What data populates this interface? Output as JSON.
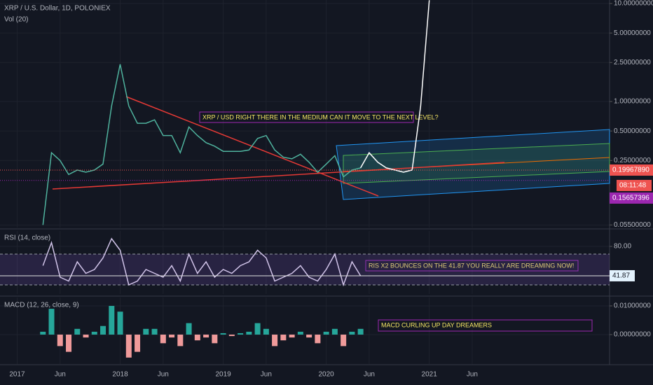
{
  "chart_data": [
    {
      "type": "line",
      "title": "XRP / U.S. Dollar, 1D, POLONIEX",
      "subtitle": "Vol (20)",
      "log_scale": true,
      "grid": true,
      "xlim": [
        "2016-11",
        "2022-10"
      ],
      "ylim": [
        0.0518,
        10.86
      ],
      "yticks": [
        {
          "value": 10,
          "label": "10.00000000"
        },
        {
          "value": 5,
          "label": "5.00000000"
        },
        {
          "value": 2.5,
          "label": "2.50000000"
        },
        {
          "value": 1,
          "label": "1.00000000"
        },
        {
          "value": 0.5,
          "label": "0.50000000"
        },
        {
          "value": 0.25,
          "label": "0.25000000"
        },
        {
          "value": 0.055,
          "label": "0.05500000"
        }
      ],
      "series": [
        {
          "color": "#4fb39e",
          "x": [
            "2017-04",
            "2017-05",
            "2017-06",
            "2017-07",
            "2017-08",
            "2017-09",
            "2017-10",
            "2017-11",
            "2017-12",
            "2018-01",
            "2018-02",
            "2018-03",
            "2018-04",
            "2018-05",
            "2018-06",
            "2018-07",
            "2018-08",
            "2018-09",
            "2018-10",
            "2018-11",
            "2018-12",
            "2019-01",
            "2019-02",
            "2019-03",
            "2019-04",
            "2019-05",
            "2019-06",
            "2019-07",
            "2019-08",
            "2019-09",
            "2019-10",
            "2019-11",
            "2019-12",
            "2020-01",
            "2020-02",
            "2020-03",
            "2020-04",
            "2020-05"
          ],
          "values": [
            0.055,
            0.3,
            0.25,
            0.18,
            0.2,
            0.19,
            0.2,
            0.23,
            0.9,
            2.4,
            0.9,
            0.6,
            0.6,
            0.65,
            0.45,
            0.45,
            0.3,
            0.55,
            0.45,
            0.38,
            0.35,
            0.31,
            0.31,
            0.31,
            0.32,
            0.42,
            0.45,
            0.32,
            0.27,
            0.26,
            0.29,
            0.24,
            0.19,
            0.23,
            0.28,
            0.17,
            0.2,
            0.21
          ]
        },
        {
          "color": "#ffffff",
          "x": [
            "2020-05",
            "2020-06",
            "2020-07",
            "2020-08",
            "2020-09",
            "2020-10",
            "2020-11",
            "2020-12",
            "2021-01"
          ],
          "values": [
            0.21,
            0.3,
            0.24,
            0.21,
            0.2,
            0.19,
            0.2,
            0.9,
            10.8
          ]
        }
      ],
      "price_labels": [
        {
          "value": 0.1996789,
          "label": "0.19967890",
          "color": "#ef5350"
        },
        {
          "value": 0.15657396,
          "label": "0.15657396",
          "color": "#9c27b0"
        }
      ],
      "countdown": "08:11:48",
      "annotation": "XRP / USD RIGHT THERE IN THE MEDIUM  CAN IT MOVE TO THE NEXT LEVEL?"
    },
    {
      "type": "line",
      "title": "RSI (14, close)",
      "color": "#d1c4e9",
      "xlim": [
        "2016-11",
        "2022-10"
      ],
      "ylim": [
        18.2,
        100
      ],
      "yticks": [
        {
          "value": 80,
          "label": "80.00"
        }
      ],
      "bands": [
        70,
        30
      ],
      "x": [
        "2017-04",
        "2017-05",
        "2017-06",
        "2017-07",
        "2017-08",
        "2017-09",
        "2017-10",
        "2017-11",
        "2017-12",
        "2018-01",
        "2018-02",
        "2018-03",
        "2018-04",
        "2018-05",
        "2018-06",
        "2018-07",
        "2018-08",
        "2018-09",
        "2018-10",
        "2018-11",
        "2018-12",
        "2019-01",
        "2019-02",
        "2019-03",
        "2019-04",
        "2019-05",
        "2019-06",
        "2019-07",
        "2019-08",
        "2019-09",
        "2019-10",
        "2019-11",
        "2019-12",
        "2020-01",
        "2020-02",
        "2020-03",
        "2020-04",
        "2020-05"
      ],
      "values": [
        55,
        85,
        40,
        35,
        60,
        45,
        50,
        65,
        90,
        75,
        30,
        35,
        50,
        45,
        40,
        55,
        35,
        70,
        45,
        60,
        40,
        50,
        45,
        55,
        60,
        75,
        65,
        35,
        40,
        45,
        55,
        40,
        35,
        50,
        70,
        30,
        60,
        41.87
      ],
      "annotation": "RIS X2 BOUNCES ON THE 41.87  YOU REALLY ARE DREAMING NOW!"
    },
    {
      "type": "bar",
      "title": "MACD (12, 26, close, 9)",
      "colors": [
        "#26a69a",
        "#ef9a9a"
      ],
      "xlim": [
        "2016-11",
        "2022-10"
      ],
      "ylim": [
        -0.01024,
        0.01293
      ],
      "yticks": [
        {
          "value": 0.01,
          "label": "0.01000000"
        },
        {
          "value": 0,
          "label": "0.00000000"
        }
      ],
      "xticks": [
        {
          "value": "2017-01",
          "label": "2017"
        },
        {
          "value": "2017-06",
          "label": "Jun"
        },
        {
          "value": "2018-01",
          "label": "2018"
        },
        {
          "value": "2018-06",
          "label": "Jun"
        },
        {
          "value": "2019-01",
          "label": "2019"
        },
        {
          "value": "2019-06",
          "label": "Jun"
        },
        {
          "value": "2020-01",
          "label": "2020"
        },
        {
          "value": "2020-06",
          "label": "Jun"
        },
        {
          "value": "2021-01",
          "label": "2021"
        },
        {
          "value": "2021-06",
          "label": "Jun"
        }
      ],
      "x": [
        "2017-04",
        "2017-05",
        "2017-06",
        "2017-07",
        "2017-08",
        "2017-09",
        "2017-10",
        "2017-11",
        "2017-12",
        "2018-01",
        "2018-02",
        "2018-03",
        "2018-04",
        "2018-05",
        "2018-06",
        "2018-07",
        "2018-08",
        "2018-09",
        "2018-10",
        "2018-11",
        "2018-12",
        "2019-01",
        "2019-02",
        "2019-03",
        "2019-04",
        "2019-05",
        "2019-06",
        "2019-07",
        "2019-08",
        "2019-09",
        "2019-10",
        "2019-11",
        "2019-12",
        "2020-01",
        "2020-02",
        "2020-03",
        "2020-04",
        "2020-05"
      ],
      "values": [
        0.001,
        0.009,
        -0.004,
        -0.006,
        0.002,
        -0.001,
        0.001,
        0.003,
        0.01,
        0.008,
        -0.008,
        -0.006,
        0.002,
        0.002,
        -0.003,
        -0.001,
        -0.004,
        0.004,
        -0.002,
        -0.001,
        -0.003,
        0.0005,
        -0.0005,
        0.0005,
        0.001,
        0.004,
        0.002,
        -0.004,
        -0.002,
        -0.001,
        0.001,
        -0.001,
        -0.003,
        0.001,
        0.002,
        -0.004,
        0.001,
        0.002
      ],
      "annotation": "MACD CURLING UP DAY DREAMERS"
    }
  ]
}
